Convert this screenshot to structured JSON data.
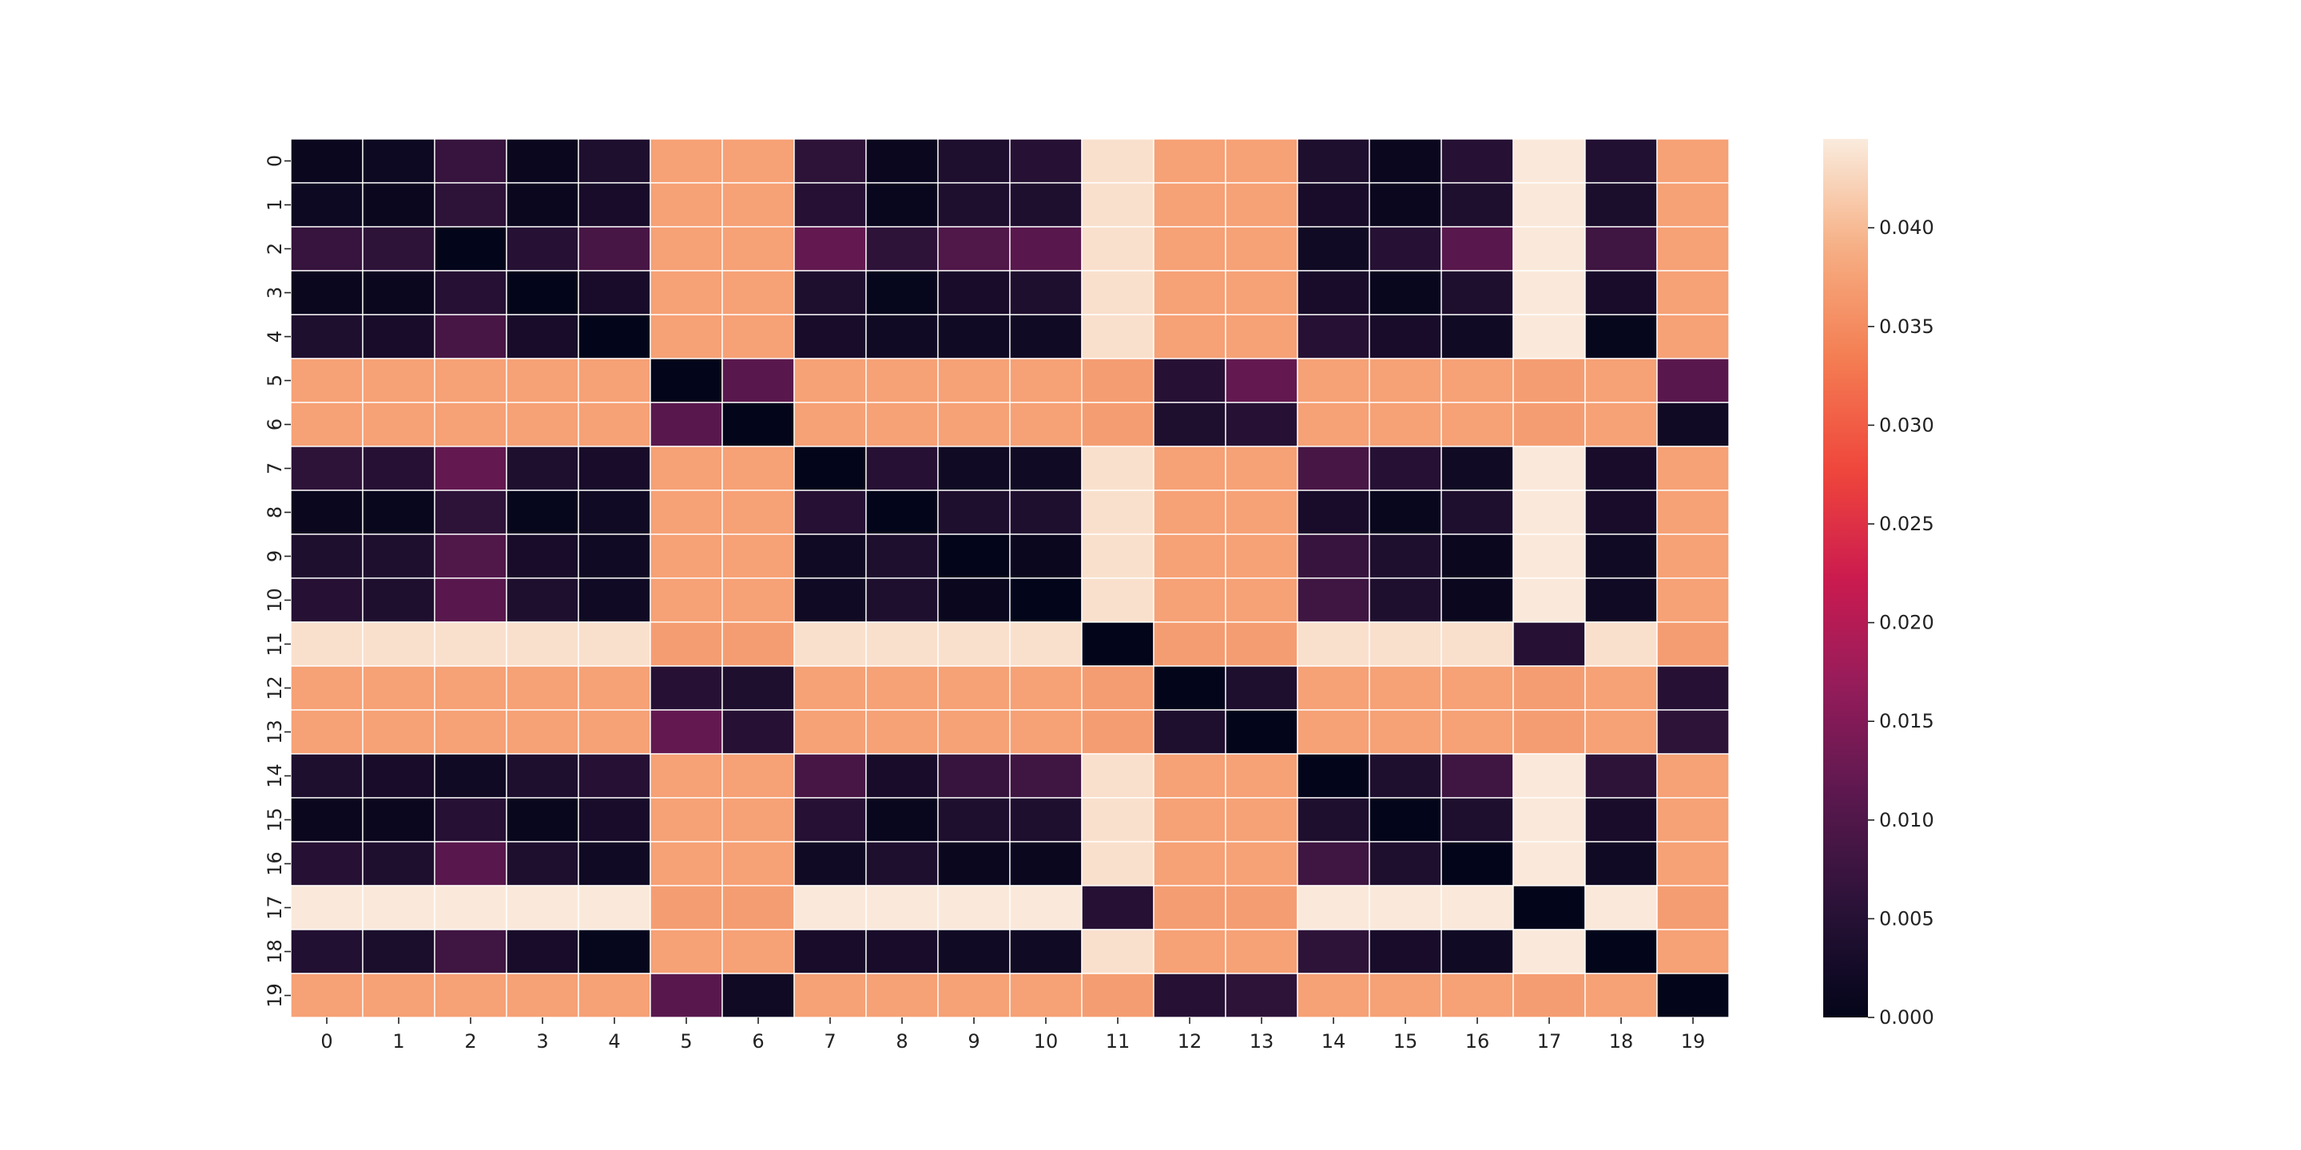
{
  "chart_data": {
    "type": "heatmap",
    "title": "",
    "xlabel": "",
    "ylabel": "",
    "x_labels": [
      "0",
      "1",
      "2",
      "3",
      "4",
      "5",
      "6",
      "7",
      "8",
      "9",
      "10",
      "11",
      "12",
      "13",
      "14",
      "15",
      "16",
      "17",
      "18",
      "19"
    ],
    "y_labels": [
      "0",
      "1",
      "2",
      "3",
      "4",
      "5",
      "6",
      "7",
      "8",
      "9",
      "10",
      "11",
      "12",
      "13",
      "14",
      "15",
      "16",
      "17",
      "18",
      "19"
    ],
    "colormap": "rocket",
    "vmin": 0.0,
    "vmax": 0.0445,
    "colorbar_ticks": [
      "0.000",
      "0.005",
      "0.010",
      "0.015",
      "0.020",
      "0.025",
      "0.030",
      "0.035",
      "0.040"
    ],
    "grid_line_color": "#ffffff",
    "values": [
      [
        0.001,
        0.0015,
        0.007,
        0.001,
        0.004,
        0.0375,
        0.0375,
        0.006,
        0.001,
        0.004,
        0.005,
        0.0435,
        0.0375,
        0.0375,
        0.004,
        0.001,
        0.005,
        0.0443,
        0.0045,
        0.0375
      ],
      [
        0.0015,
        0.001,
        0.006,
        0.001,
        0.003,
        0.0375,
        0.0375,
        0.005,
        0.0008,
        0.004,
        0.004,
        0.0435,
        0.0375,
        0.0375,
        0.003,
        0.001,
        0.004,
        0.0443,
        0.0035,
        0.0375
      ],
      [
        0.007,
        0.006,
        0.0,
        0.005,
        0.009,
        0.0375,
        0.0375,
        0.012,
        0.006,
        0.01,
        0.011,
        0.0435,
        0.0375,
        0.0375,
        0.002,
        0.005,
        0.011,
        0.0443,
        0.008,
        0.0375
      ],
      [
        0.001,
        0.001,
        0.005,
        0.0,
        0.003,
        0.0375,
        0.0375,
        0.004,
        0.0005,
        0.003,
        0.004,
        0.0435,
        0.0375,
        0.0375,
        0.003,
        0.0008,
        0.004,
        0.0443,
        0.003,
        0.0375
      ],
      [
        0.004,
        0.003,
        0.009,
        0.003,
        0.0,
        0.0375,
        0.0375,
        0.003,
        0.002,
        0.002,
        0.002,
        0.0435,
        0.0375,
        0.0375,
        0.005,
        0.003,
        0.002,
        0.0443,
        0.0005,
        0.0375
      ],
      [
        0.0375,
        0.0375,
        0.0375,
        0.0375,
        0.0375,
        0.0,
        0.011,
        0.0375,
        0.0375,
        0.0375,
        0.0375,
        0.037,
        0.005,
        0.012,
        0.0375,
        0.0375,
        0.0375,
        0.037,
        0.0375,
        0.011
      ],
      [
        0.0375,
        0.0375,
        0.0375,
        0.0375,
        0.0375,
        0.011,
        0.0,
        0.0375,
        0.0375,
        0.0375,
        0.0375,
        0.037,
        0.004,
        0.005,
        0.0375,
        0.0375,
        0.0375,
        0.037,
        0.0375,
        0.002
      ],
      [
        0.006,
        0.005,
        0.012,
        0.004,
        0.003,
        0.0375,
        0.0375,
        0.0,
        0.005,
        0.002,
        0.002,
        0.0435,
        0.0375,
        0.0375,
        0.009,
        0.005,
        0.002,
        0.0443,
        0.003,
        0.0375
      ],
      [
        0.001,
        0.0008,
        0.006,
        0.0005,
        0.002,
        0.0375,
        0.0375,
        0.005,
        0.0,
        0.004,
        0.004,
        0.0435,
        0.0375,
        0.0375,
        0.003,
        0.0008,
        0.004,
        0.0443,
        0.003,
        0.0375
      ],
      [
        0.004,
        0.004,
        0.01,
        0.003,
        0.002,
        0.0375,
        0.0375,
        0.002,
        0.004,
        0.0,
        0.001,
        0.0435,
        0.0375,
        0.0375,
        0.007,
        0.004,
        0.001,
        0.0443,
        0.002,
        0.0375
      ],
      [
        0.005,
        0.004,
        0.011,
        0.004,
        0.002,
        0.0375,
        0.0375,
        0.002,
        0.004,
        0.001,
        0.0,
        0.0435,
        0.0375,
        0.0375,
        0.008,
        0.004,
        0.001,
        0.0443,
        0.002,
        0.0375
      ],
      [
        0.0435,
        0.0435,
        0.0435,
        0.0435,
        0.0435,
        0.037,
        0.037,
        0.0435,
        0.0435,
        0.0435,
        0.0435,
        0.0,
        0.037,
        0.037,
        0.0435,
        0.0435,
        0.0435,
        0.005,
        0.0435,
        0.037
      ],
      [
        0.0375,
        0.0375,
        0.0375,
        0.0375,
        0.0375,
        0.005,
        0.004,
        0.0375,
        0.0375,
        0.0375,
        0.0375,
        0.037,
        0.0,
        0.004,
        0.0375,
        0.0375,
        0.0375,
        0.037,
        0.0375,
        0.005
      ],
      [
        0.0375,
        0.0375,
        0.0375,
        0.0375,
        0.0375,
        0.012,
        0.005,
        0.0375,
        0.0375,
        0.0375,
        0.0375,
        0.037,
        0.004,
        0.0,
        0.0375,
        0.0375,
        0.0375,
        0.037,
        0.0375,
        0.006
      ],
      [
        0.004,
        0.003,
        0.002,
        0.004,
        0.005,
        0.0375,
        0.0375,
        0.009,
        0.003,
        0.007,
        0.008,
        0.0435,
        0.0375,
        0.0375,
        0.0,
        0.004,
        0.008,
        0.0443,
        0.006,
        0.0375
      ],
      [
        0.001,
        0.001,
        0.005,
        0.0008,
        0.003,
        0.0375,
        0.0375,
        0.005,
        0.0008,
        0.004,
        0.004,
        0.0435,
        0.0375,
        0.0375,
        0.004,
        0.0,
        0.004,
        0.0443,
        0.003,
        0.0375
      ],
      [
        0.005,
        0.004,
        0.011,
        0.004,
        0.002,
        0.0375,
        0.0375,
        0.002,
        0.004,
        0.001,
        0.001,
        0.0435,
        0.0375,
        0.0375,
        0.008,
        0.004,
        0.0,
        0.0443,
        0.002,
        0.0375
      ],
      [
        0.0443,
        0.0443,
        0.0443,
        0.0443,
        0.0443,
        0.037,
        0.037,
        0.0443,
        0.0443,
        0.0443,
        0.0443,
        0.005,
        0.037,
        0.037,
        0.0443,
        0.0443,
        0.0443,
        0.0,
        0.0443,
        0.037
      ],
      [
        0.0045,
        0.0035,
        0.008,
        0.003,
        0.0005,
        0.0375,
        0.0375,
        0.003,
        0.003,
        0.002,
        0.002,
        0.0435,
        0.0375,
        0.0375,
        0.006,
        0.003,
        0.002,
        0.0443,
        0.0,
        0.0375
      ],
      [
        0.0375,
        0.0375,
        0.0375,
        0.0375,
        0.0375,
        0.011,
        0.002,
        0.0375,
        0.0375,
        0.0375,
        0.0375,
        0.037,
        0.005,
        0.006,
        0.0375,
        0.0375,
        0.0375,
        0.037,
        0.0375,
        0.0
      ]
    ]
  }
}
